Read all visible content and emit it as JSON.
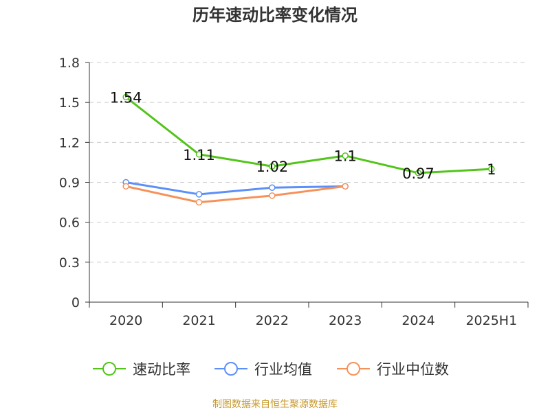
{
  "chart_data": {
    "type": "line",
    "title": "历年速动比率变化情况",
    "categories": [
      "2020",
      "2021",
      "2022",
      "2023",
      "2024",
      "2025H1"
    ],
    "y_ticks": [
      "0",
      "0.3",
      "0.6",
      "0.9",
      "1.2",
      "1.5",
      "1.8"
    ],
    "ylim": [
      0,
      1.8
    ],
    "grid": true,
    "legend_position": "bottom",
    "series": [
      {
        "name": "速动比率",
        "color": "#52c41a",
        "values": [
          1.54,
          1.11,
          1.02,
          1.1,
          0.97,
          1
        ],
        "labels": [
          "1.54",
          "1.11",
          "1.02",
          "1.1",
          "0.97",
          "1"
        ]
      },
      {
        "name": "行业均值",
        "color": "#5b8ff9",
        "values": [
          0.9,
          0.81,
          0.86,
          0.87,
          null,
          null
        ]
      },
      {
        "name": "行业中位数",
        "color": "#f6915a",
        "values": [
          0.87,
          0.75,
          0.8,
          0.87,
          null,
          null
        ]
      }
    ]
  },
  "source": "制图数据来自恒生聚源数据库"
}
